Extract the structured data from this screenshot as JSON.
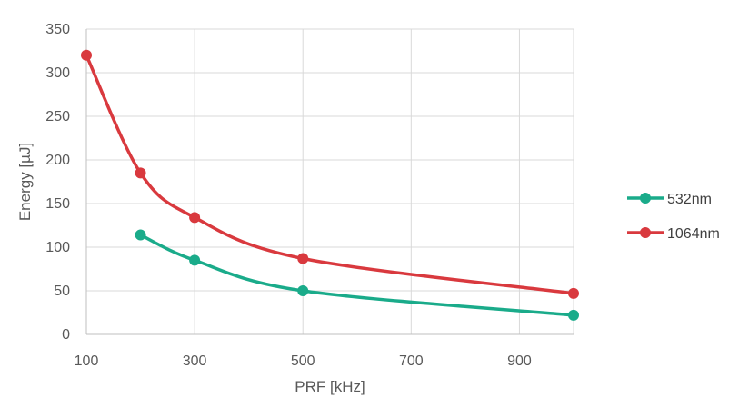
{
  "chart_data": {
    "type": "line",
    "title": "",
    "xlabel": "PRF [kHz]",
    "ylabel": "Energy [µJ]",
    "xlim": [
      100,
      1000
    ],
    "ylim": [
      0,
      350
    ],
    "x_ticks": [
      100,
      300,
      500,
      700,
      900
    ],
    "y_ticks": [
      0,
      50,
      100,
      150,
      200,
      250,
      300,
      350
    ],
    "grid": true,
    "smooth": true,
    "legend_position": "right",
    "series": [
      {
        "name": "532nm",
        "color": "#1aab8a",
        "x": [
          200,
          300,
          500,
          1000
        ],
        "y": [
          114,
          85,
          50,
          22
        ]
      },
      {
        "name": "1064nm",
        "color": "#d9393e",
        "x": [
          100,
          200,
          300,
          500,
          1000
        ],
        "y": [
          320,
          185,
          134,
          87,
          47
        ]
      }
    ]
  }
}
